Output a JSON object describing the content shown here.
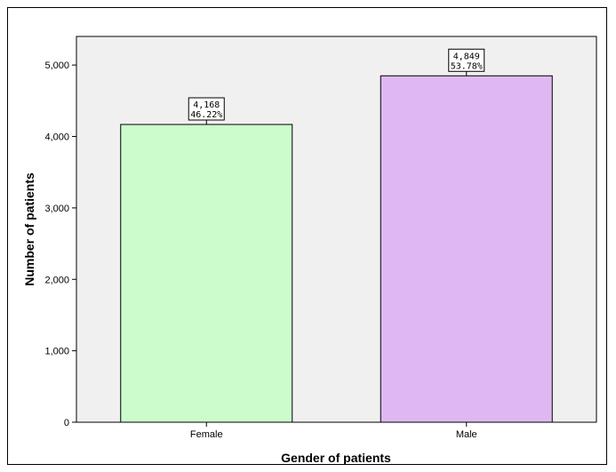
{
  "chart_data": {
    "type": "bar",
    "title": "",
    "xlabel": "Gender of patients",
    "ylabel": "Number of patients",
    "categories": [
      "Female",
      "Male"
    ],
    "values": [
      4168,
      4849
    ],
    "value_labels": [
      "4,168",
      "4,849"
    ],
    "percent_labels": [
      "46.22%",
      "53.78%"
    ],
    "bar_colors": [
      "#ccfccc",
      "#dfb8f2"
    ],
    "ylim": [
      0,
      5400
    ],
    "yticks": [
      0,
      1000,
      2000,
      3000,
      4000,
      5000
    ],
    "ytick_labels": [
      "0",
      "1,000",
      "2,000",
      "3,000",
      "4,000",
      "5,000"
    ],
    "grid": false,
    "plot_background": "#f0f0f0"
  }
}
